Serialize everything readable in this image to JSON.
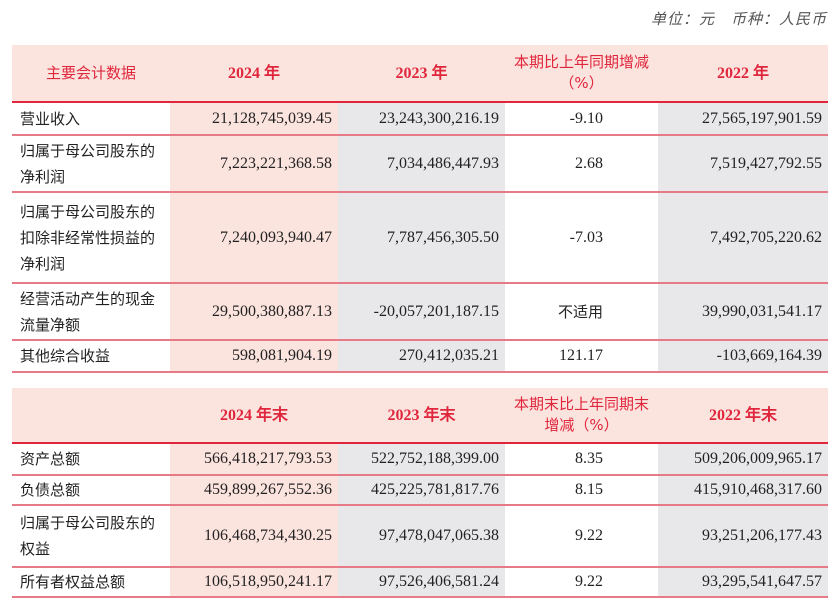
{
  "unit_note": "单位：元　币种：人民币",
  "table1": {
    "headers": [
      "主要会计数据",
      "2024 年",
      "2023 年",
      "本期比上年同期增减（%）",
      "2022 年"
    ],
    "rows": [
      {
        "label": "营业收入",
        "v2024": "21,128,745,039.45",
        "v2023": "23,243,300,216.19",
        "change": "-9.10",
        "v2022": "27,565,197,901.59"
      },
      {
        "label": "归属于母公司股东的净利润",
        "v2024": "7,223,221,368.58",
        "v2023": "7,034,486,447.93",
        "change": "2.68",
        "v2022": "7,519,427,792.55"
      },
      {
        "label": "归属于母公司股东的扣除非经常性损益的净利润",
        "v2024": "7,240,093,940.47",
        "v2023": "7,787,456,305.50",
        "change": "-7.03",
        "v2022": "7,492,705,220.62"
      },
      {
        "label": "经营活动产生的现金流量净额",
        "v2024": "29,500,380,887.13",
        "v2023": "-20,057,201,187.15",
        "change": "不适用",
        "v2022": "39,990,031,541.17"
      },
      {
        "label": "其他综合收益",
        "v2024": "598,081,904.19",
        "v2023": "270,412,035.21",
        "change": "121.17",
        "v2022": "-103,669,164.39"
      }
    ]
  },
  "table2": {
    "headers": [
      "",
      "2024 年末",
      "2023 年末",
      "本期末比上年同期末增减（%）",
      "2022 年末"
    ],
    "rows": [
      {
        "label": "资产总额",
        "v2024": "566,418,217,793.53",
        "v2023": "522,752,188,399.00",
        "change": "8.35",
        "v2022": "509,206,009,965.17"
      },
      {
        "label": "负债总额",
        "v2024": "459,899,267,552.36",
        "v2023": "425,225,781,817.76",
        "change": "8.15",
        "v2022": "415,910,468,317.60"
      },
      {
        "label": "归属于母公司股东的权益",
        "v2024": "106,468,734,430.25",
        "v2023": "97,478,047,065.38",
        "change": "9.22",
        "v2022": "93,251,206,177.43"
      },
      {
        "label": "所有者权益总额",
        "v2024": "106,518,950,241.17",
        "v2023": "97,526,406,581.24",
        "change": "9.22",
        "v2022": "93,295,541,647.57"
      }
    ]
  }
}
